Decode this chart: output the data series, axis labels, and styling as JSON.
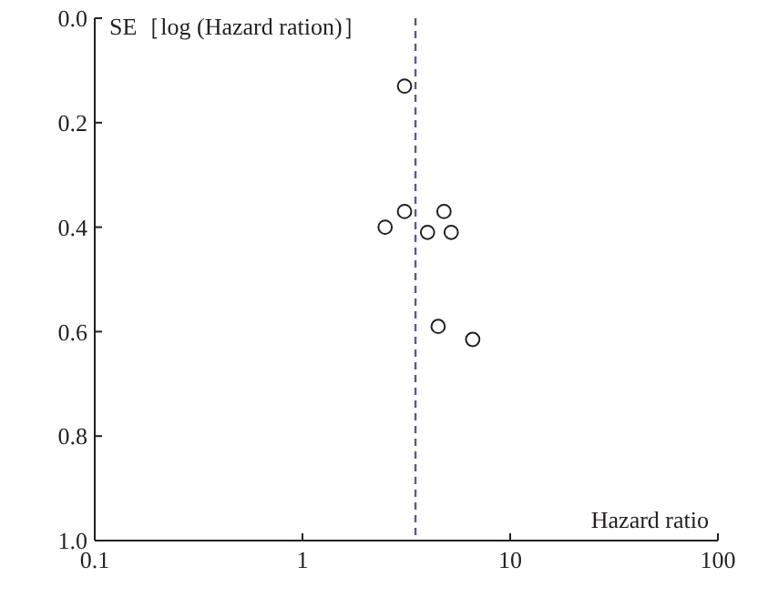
{
  "chart_data": {
    "type": "scatter",
    "xlabel": "Hazard ratio",
    "ylabel": "SE［log (Hazard ration)］",
    "log": "x",
    "marker": "circle",
    "x": [
      3.1,
      2.5,
      3.1,
      4.0,
      4.8,
      5.2,
      4.5,
      6.6
    ],
    "series": [
      {
        "color": "#231f20",
        "values": [
          0.13,
          0.4,
          0.37,
          0.41,
          0.37,
          0.41,
          0.59,
          0.615
        ]
      }
    ],
    "xlim": [
      0.1,
      100
    ],
    "xticks": [
      0.1,
      1,
      10,
      100
    ],
    "ylim": [
      1,
      0
    ],
    "yticks": [
      {
        "value": 0,
        "label": "0.0"
      },
      0.2,
      0.4,
      0.6,
      0.8,
      {
        "value": 1,
        "label": "1.0"
      }
    ],
    "ref_lines": [
      {
        "axis": "x",
        "value": 3.5,
        "color": "#5a5a8c",
        "line_style": "dashed"
      }
    ],
    "grid": false
  }
}
